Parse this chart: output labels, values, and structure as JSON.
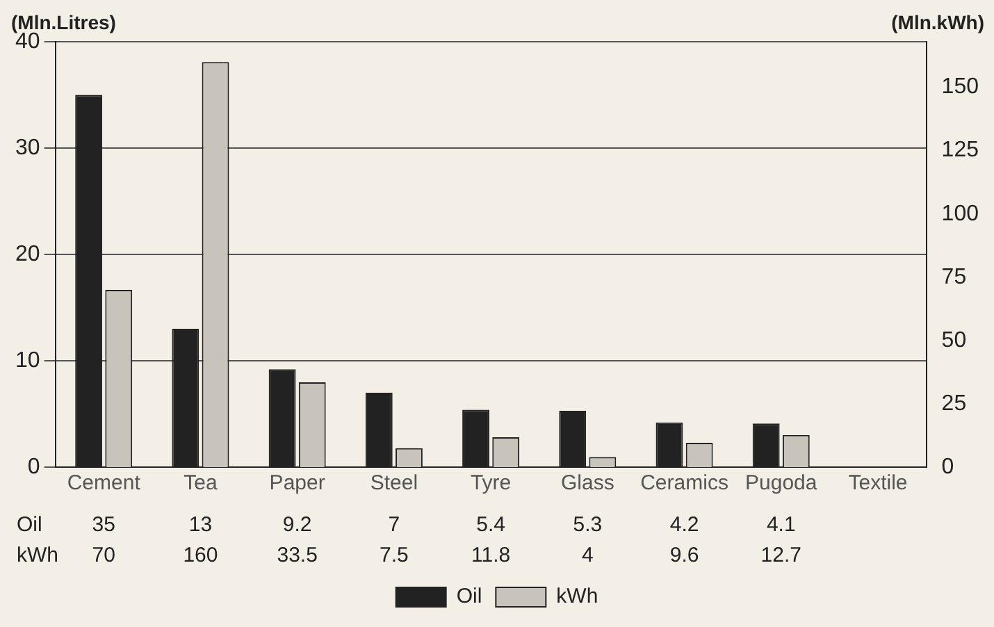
{
  "chart_data": {
    "type": "bar",
    "ylabel": "(Mln.Litres)",
    "y2label": "(Mln.kWh)",
    "categories": [
      "Cement",
      "Tea",
      "Paper",
      "Steel",
      "Tyre",
      "Glass",
      "Ceramics",
      "Pugoda",
      "Textile"
    ],
    "series": [
      {
        "name": "Oil",
        "color": "#222222",
        "values": [
          35,
          13,
          9.2,
          7,
          5.4,
          5.3,
          4.2,
          4.1,
          null
        ]
      },
      {
        "name": "kWh",
        "color": "#c8c4bc",
        "axis": "y2",
        "values": [
          70,
          160,
          33.5,
          7.5,
          11.8,
          4,
          9.6,
          12.7,
          null
        ]
      }
    ],
    "ylim": [
      0,
      40
    ],
    "yticks": [
      0,
      10,
      20,
      30,
      40
    ],
    "y2lim": [
      0,
      168
    ],
    "y2ticks": [
      0,
      25,
      50,
      75,
      100,
      125,
      150
    ],
    "grid": "y",
    "legend": "bottom",
    "data_labels": true
  }
}
